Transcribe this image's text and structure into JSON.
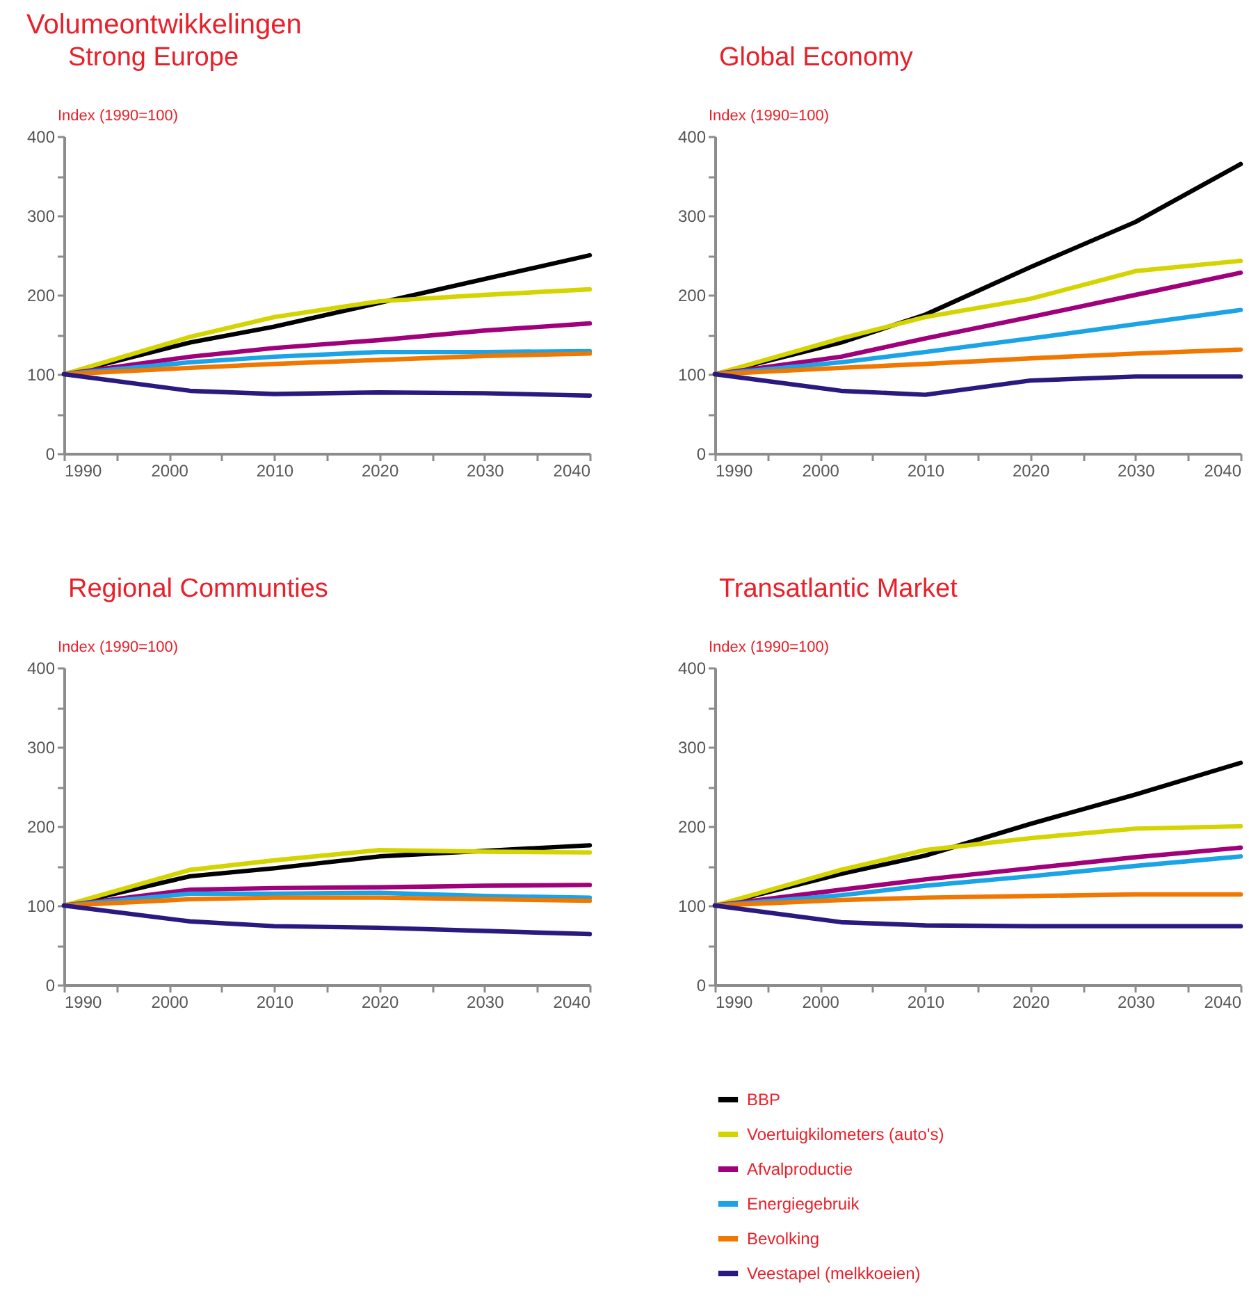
{
  "chart_data": [
    {
      "type": "line",
      "title": "Strong Europe",
      "annotations": [
        "Volumeontwikkelingen"
      ],
      "ylabel": "Index (1990=100)",
      "x": [
        1990,
        2002,
        2010,
        2020,
        2030,
        2040
      ],
      "xlim": [
        1990,
        2040
      ],
      "xticks": [
        1990,
        {
          "value": 1995,
          "label": null
        },
        2000,
        {
          "value": 2005,
          "label": null
        },
        2010,
        {
          "value": 2015,
          "label": null
        },
        2020,
        {
          "value": 2025,
          "label": null
        },
        2030,
        {
          "value": 2035,
          "label": null
        },
        2040
      ],
      "ylim": [
        0,
        400
      ],
      "yticks": [
        0,
        {
          "value": 50,
          "label": null
        },
        100,
        {
          "value": 150,
          "label": null
        },
        200,
        {
          "value": 250,
          "label": null
        },
        300,
        {
          "value": 350,
          "label": null
        },
        400
      ],
      "grid": false,
      "line_style": "solid",
      "series": [
        {
          "color": "#000000",
          "values": [
            100,
            140,
            160,
            190,
            220,
            250
          ]
        },
        {
          "color": "#d4d400",
          "values": [
            100,
            147,
            172,
            192,
            200,
            207
          ]
        },
        {
          "color": "#a0007a",
          "values": [
            100,
            122,
            133,
            143,
            155,
            164
          ]
        },
        {
          "color": "#1aa3e6",
          "values": [
            100,
            115,
            122,
            128,
            128,
            129
          ]
        },
        {
          "color": "#f07800",
          "values": [
            100,
            108,
            113,
            118,
            123,
            126
          ]
        },
        {
          "color": "#2a1a80",
          "values": [
            100,
            79,
            75,
            77,
            76,
            73
          ]
        }
      ]
    },
    {
      "type": "line",
      "title": "Global Economy",
      "ylabel": "Index (1990=100)",
      "x": [
        1990,
        2002,
        2010,
        2020,
        2030,
        2040
      ],
      "xlim": [
        1990,
        2040
      ],
      "xticks": [
        1990,
        {
          "value": 1995,
          "label": null
        },
        2000,
        {
          "value": 2005,
          "label": null
        },
        2010,
        {
          "value": 2015,
          "label": null
        },
        2020,
        {
          "value": 2025,
          "label": null
        },
        2030,
        {
          "value": 2035,
          "label": null
        },
        2040
      ],
      "ylim": [
        0,
        400
      ],
      "yticks": [
        0,
        {
          "value": 50,
          "label": null
        },
        100,
        {
          "value": 150,
          "label": null
        },
        200,
        {
          "value": 250,
          "label": null
        },
        300,
        {
          "value": 350,
          "label": null
        },
        400
      ],
      "grid": false,
      "line_style": "solid",
      "series": [
        {
          "color": "#000000",
          "values": [
            100,
            140,
            175,
            235,
            292,
            365
          ]
        },
        {
          "color": "#d4d400",
          "values": [
            100,
            145,
            172,
            195,
            230,
            243
          ]
        },
        {
          "color": "#a0007a",
          "values": [
            100,
            122,
            145,
            172,
            200,
            228
          ]
        },
        {
          "color": "#1aa3e6",
          "values": [
            100,
            115,
            128,
            145,
            163,
            181
          ]
        },
        {
          "color": "#f07800",
          "values": [
            100,
            108,
            113,
            120,
            126,
            131
          ]
        },
        {
          "color": "#2a1a80",
          "values": [
            100,
            79,
            74,
            92,
            97,
            97
          ]
        }
      ]
    },
    {
      "type": "line",
      "title": "Regional Communties",
      "ylabel": "Index (1990=100)",
      "x": [
        1990,
        2002,
        2010,
        2020,
        2030,
        2040
      ],
      "xlim": [
        1990,
        2040
      ],
      "xticks": [
        1990,
        {
          "value": 1995,
          "label": null
        },
        2000,
        {
          "value": 2005,
          "label": null
        },
        2010,
        {
          "value": 2015,
          "label": null
        },
        2020,
        {
          "value": 2025,
          "label": null
        },
        2030,
        {
          "value": 2035,
          "label": null
        },
        2040
      ],
      "ylim": [
        0,
        400
      ],
      "yticks": [
        0,
        {
          "value": 50,
          "label": null
        },
        100,
        {
          "value": 150,
          "label": null
        },
        200,
        {
          "value": 250,
          "label": null
        },
        300,
        {
          "value": 350,
          "label": null
        },
        400
      ],
      "grid": false,
      "line_style": "solid",
      "series": [
        {
          "color": "#000000",
          "values": [
            100,
            137,
            147,
            162,
            169,
            176
          ]
        },
        {
          "color": "#d4d400",
          "values": [
            100,
            145,
            157,
            170,
            168,
            167
          ]
        },
        {
          "color": "#a0007a",
          "values": [
            100,
            120,
            122,
            123,
            125,
            126
          ]
        },
        {
          "color": "#1aa3e6",
          "values": [
            100,
            115,
            115,
            116,
            112,
            110
          ]
        },
        {
          "color": "#f07800",
          "values": [
            100,
            108,
            110,
            110,
            108,
            106
          ]
        },
        {
          "color": "#2a1a80",
          "values": [
            100,
            80,
            74,
            72,
            68,
            64
          ]
        }
      ]
    },
    {
      "type": "line",
      "title": "Transatlantic Market",
      "ylabel": "Index (1990=100)",
      "x": [
        1990,
        2002,
        2010,
        2020,
        2030,
        2040
      ],
      "xlim": [
        1990,
        2040
      ],
      "xticks": [
        1990,
        {
          "value": 1995,
          "label": null
        },
        2000,
        {
          "value": 2005,
          "label": null
        },
        2010,
        {
          "value": 2015,
          "label": null
        },
        2020,
        {
          "value": 2025,
          "label": null
        },
        2030,
        {
          "value": 2035,
          "label": null
        },
        2040
      ],
      "ylim": [
        0,
        400
      ],
      "yticks": [
        0,
        {
          "value": 50,
          "label": null
        },
        100,
        {
          "value": 150,
          "label": null
        },
        200,
        {
          "value": 250,
          "label": null
        },
        300,
        {
          "value": 350,
          "label": null
        },
        400
      ],
      "grid": false,
      "line_style": "solid",
      "legend": "bottom",
      "series": [
        {
          "name": "BBP",
          "color": "#000000",
          "values": [
            100,
            140,
            163,
            203,
            240,
            280
          ]
        },
        {
          "name": "Voertuigkilometers (auto's)",
          "color": "#d4d400",
          "values": [
            100,
            145,
            170,
            185,
            197,
            200
          ]
        },
        {
          "name": "Afvalproductie",
          "color": "#a0007a",
          "values": [
            100,
            120,
            133,
            147,
            161,
            173
          ]
        },
        {
          "name": "Energiegebruik",
          "color": "#1aa3e6",
          "values": [
            100,
            113,
            125,
            137,
            150,
            162
          ]
        },
        {
          "name": "Bevolking",
          "color": "#f07800",
          "values": [
            100,
            107,
            110,
            112,
            114,
            114
          ]
        },
        {
          "name": "Veestapel (melkkoeien)",
          "color": "#2a1a80",
          "values": [
            100,
            79,
            75,
            74,
            74,
            74
          ]
        }
      ]
    }
  ]
}
